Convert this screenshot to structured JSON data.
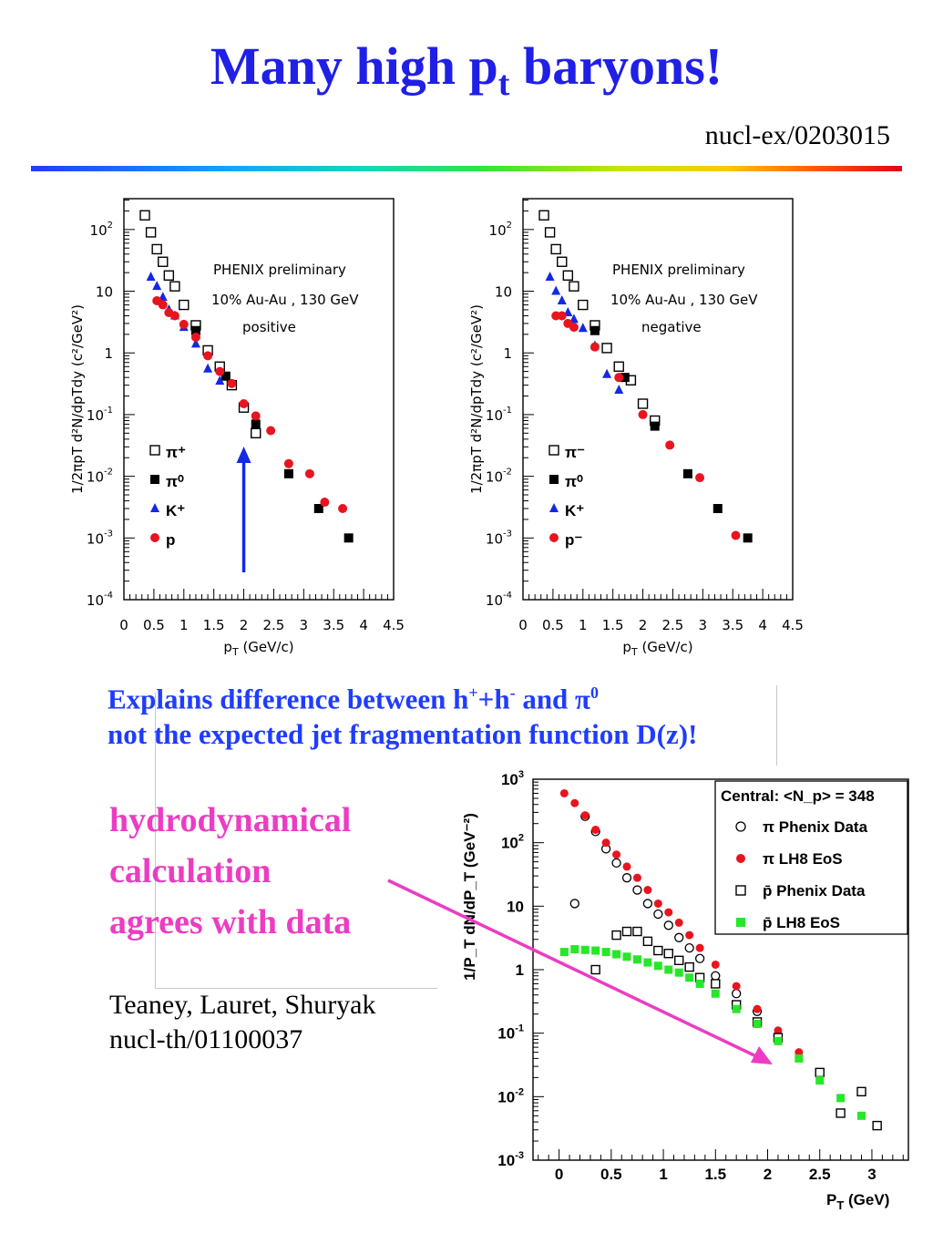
{
  "slide": {
    "title_main": "Many high p",
    "title_sub": "t",
    "title_tail": " baryons!",
    "reference": "nucl-ex/0203015",
    "note_line1_a": "Explains difference between h",
    "note_line1_sup1": "+",
    "note_line1_b": "+h",
    "note_line1_sup2": "-",
    "note_line1_c": " and π",
    "note_line1_sup3": "0",
    "note_line2": "not the expected jet fragmentation function D(z)!",
    "hydro_lines": [
      "hydrodynamical",
      "calculation",
      "agrees with data"
    ],
    "authors_line1": "Teaney, Lauret, Shuryak",
    "authors_line2": "nucl-th/01100037"
  },
  "colors": {
    "title": "#1f1fe6",
    "blue_text": "#1f3cff",
    "magenta_text": "#ec3cc3",
    "red_marker": "#e8141e",
    "blue_marker": "#1428e6",
    "green_marker": "#28e628",
    "phenix_label": "#e8141e"
  },
  "chart_data": [
    {
      "type": "scatter",
      "name": "positive",
      "annotations": [
        "PHENIX preliminary",
        "10% Au-Au , 130 GeV",
        "positive"
      ],
      "xlabel": "p_T (GeV/c)",
      "ylabel": "1/2πp_T d²N/dp_Tdy (c²/GeV²)",
      "xlim": [
        0,
        4.5
      ],
      "ylim_log10": [
        -4,
        2.5
      ],
      "log_y": true,
      "x_ticks": [
        "0",
        "0.5",
        "1",
        "1.5",
        "2",
        "2.5",
        "3",
        "3.5",
        "4",
        "4.5"
      ],
      "y_ticks": [
        "10^-4",
        "10^-3",
        "10^-2",
        "10^-1",
        "1",
        "10",
        "10^2"
      ],
      "legend": [
        "π⁺",
        "π⁰",
        "K⁺",
        "p"
      ],
      "legend_position": "bottom-left",
      "series": [
        {
          "name": "π⁺",
          "marker": "open-square",
          "points": [
            [
              0.25,
              320
            ],
            [
              0.35,
              170
            ],
            [
              0.45,
              90
            ],
            [
              0.55,
              48
            ],
            [
              0.65,
              30
            ],
            [
              0.75,
              18
            ],
            [
              0.85,
              12
            ],
            [
              1.0,
              6
            ],
            [
              1.2,
              2.8
            ],
            [
              1.4,
              1.1
            ],
            [
              1.6,
              0.6
            ],
            [
              1.8,
              0.3
            ],
            [
              2.0,
              0.13
            ],
            [
              2.2,
              0.05
            ]
          ]
        },
        {
          "name": "π⁰",
          "marker": "filled-square",
          "points": [
            [
              1.2,
              2.3
            ],
            [
              1.7,
              0.42
            ],
            [
              2.2,
              0.07
            ],
            [
              2.75,
              0.011
            ],
            [
              3.25,
              0.003
            ],
            [
              3.75,
              0.001
            ]
          ]
        },
        {
          "name": "K⁺",
          "marker": "filled-triangle",
          "points": [
            [
              0.45,
              17
            ],
            [
              0.55,
              12
            ],
            [
              0.65,
              8
            ],
            [
              0.75,
              5
            ],
            [
              0.85,
              4
            ],
            [
              1.0,
              2.6
            ],
            [
              1.2,
              1.4
            ],
            [
              1.4,
              0.55
            ],
            [
              1.6,
              0.35
            ]
          ]
        },
        {
          "name": "p",
          "marker": "filled-circle",
          "points": [
            [
              0.55,
              7
            ],
            [
              0.65,
              6
            ],
            [
              0.75,
              4.5
            ],
            [
              0.85,
              4
            ],
            [
              1.0,
              2.9
            ],
            [
              1.2,
              1.8
            ],
            [
              1.4,
              0.9
            ],
            [
              1.6,
              0.5
            ],
            [
              1.8,
              0.32
            ],
            [
              2.0,
              0.15
            ],
            [
              2.2,
              0.095
            ],
            [
              2.45,
              0.055
            ],
            [
              2.75,
              0.016
            ],
            [
              3.1,
              0.011
            ],
            [
              3.35,
              0.0038
            ],
            [
              3.65,
              0.003
            ]
          ]
        }
      ],
      "arrow_at_x": 2.0
    },
    {
      "type": "scatter",
      "name": "negative",
      "annotations": [
        "PHENIX preliminary",
        "10% Au-Au , 130 GeV",
        "negative"
      ],
      "xlabel": "p_T (GeV/c)",
      "ylabel": "1/2πp_T d²N/dp_Tdy (c²/GeV²)",
      "xlim": [
        0,
        4.5
      ],
      "ylim_log10": [
        -4,
        2.5
      ],
      "log_y": true,
      "x_ticks": [
        "0",
        "0.5",
        "1",
        "1.5",
        "2",
        "2.5",
        "3",
        "3.5",
        "4",
        "4.5"
      ],
      "y_ticks": [
        "10^-4",
        "10^-3",
        "10^-2",
        "10^-1",
        "1",
        "10",
        "10^2"
      ],
      "legend": [
        "π⁻",
        "π⁰",
        "K⁺",
        "p⁻"
      ],
      "legend_position": "bottom-left",
      "series": [
        {
          "name": "π⁻",
          "marker": "open-square",
          "points": [
            [
              0.25,
              320
            ],
            [
              0.35,
              170
            ],
            [
              0.45,
              90
            ],
            [
              0.55,
              48
            ],
            [
              0.65,
              30
            ],
            [
              0.75,
              18
            ],
            [
              0.85,
              12
            ],
            [
              1.0,
              6
            ],
            [
              1.2,
              2.8
            ],
            [
              1.4,
              1.2
            ],
            [
              1.6,
              0.6
            ],
            [
              1.8,
              0.36
            ],
            [
              2.0,
              0.15
            ],
            [
              2.2,
              0.08
            ]
          ]
        },
        {
          "name": "π⁰",
          "marker": "filled-square",
          "points": [
            [
              1.2,
              2.3
            ],
            [
              1.7,
              0.4
            ],
            [
              2.2,
              0.065
            ],
            [
              2.75,
              0.011
            ],
            [
              3.25,
              0.003
            ],
            [
              3.75,
              0.001
            ]
          ]
        },
        {
          "name": "K⁺",
          "marker": "filled-triangle",
          "points": [
            [
              0.45,
              17
            ],
            [
              0.55,
              10
            ],
            [
              0.65,
              7
            ],
            [
              0.75,
              4.5
            ],
            [
              0.85,
              3.5
            ],
            [
              1.0,
              2.5
            ],
            [
              1.2,
              1.3
            ],
            [
              1.4,
              0.45
            ],
            [
              1.6,
              0.25
            ]
          ]
        },
        {
          "name": "p⁻",
          "marker": "filled-circle",
          "points": [
            [
              0.55,
              4
            ],
            [
              0.65,
              4
            ],
            [
              0.75,
              3
            ],
            [
              0.85,
              2.6
            ],
            [
              1.2,
              1.25
            ],
            [
              1.6,
              0.4
            ],
            [
              2.0,
              0.1
            ],
            [
              2.45,
              0.032
            ],
            [
              2.95,
              0.0095
            ],
            [
              3.55,
              0.0011
            ]
          ]
        }
      ]
    },
    {
      "type": "scatter",
      "name": "hydro",
      "xlabel": "P_T (GeV)",
      "ylabel": "1/P_T dN/dP_T (GeV⁻²)",
      "xlim": [
        -0.25,
        3.35
      ],
      "ylim_log10": [
        -3,
        3
      ],
      "log_y": true,
      "x_ticks": [
        "0",
        "0.5",
        "1",
        "1.5",
        "2",
        "2.5",
        "3"
      ],
      "y_ticks": [
        "10^-3",
        "10^-2",
        "10^-1",
        "1",
        "10",
        "10^2",
        "10^3"
      ],
      "legend_title": "Central: <N_p> = 348",
      "legend": [
        "π  Phenix Data",
        "π  LH8 EoS",
        "p̄  Phenix Data",
        "p̄  LH8 EoS"
      ],
      "legend_position": "top-right",
      "series": [
        {
          "name": "π Phenix Data",
          "marker": "open-circle",
          "points": [
            [
              0.15,
              11
            ],
            [
              0.25,
              260
            ],
            [
              0.35,
              150
            ],
            [
              0.45,
              80
            ],
            [
              0.55,
              48
            ],
            [
              0.65,
              28
            ],
            [
              0.75,
              18
            ],
            [
              0.85,
              11
            ],
            [
              0.95,
              7.5
            ],
            [
              1.05,
              5
            ],
            [
              1.15,
              3.2
            ],
            [
              1.25,
              2.2
            ],
            [
              1.35,
              1.5
            ],
            [
              1.5,
              0.8
            ],
            [
              1.7,
              0.42
            ],
            [
              1.9,
              0.22
            ],
            [
              2.1,
              0.09
            ]
          ]
        },
        {
          "name": "π LH8 EoS",
          "marker": "filled-circle",
          "points": [
            [
              0.05,
              600
            ],
            [
              0.15,
              420
            ],
            [
              0.25,
              270
            ],
            [
              0.35,
              160
            ],
            [
              0.45,
              100
            ],
            [
              0.55,
              65
            ],
            [
              0.65,
              42
            ],
            [
              0.75,
              28
            ],
            [
              0.85,
              18
            ],
            [
              0.95,
              11
            ],
            [
              1.05,
              8
            ],
            [
              1.15,
              5.5
            ],
            [
              1.25,
              3.5
            ],
            [
              1.35,
              2.2
            ],
            [
              1.5,
              1.2
            ],
            [
              1.7,
              0.55
            ],
            [
              1.9,
              0.24
            ],
            [
              2.1,
              0.11
            ],
            [
              2.3,
              0.05
            ]
          ]
        },
        {
          "name": "p̄ Phenix Data",
          "marker": "open-square",
          "points": [
            [
              0.35,
              1
            ],
            [
              0.55,
              3.5
            ],
            [
              0.65,
              4
            ],
            [
              0.75,
              4
            ],
            [
              0.85,
              2.8
            ],
            [
              0.95,
              2
            ],
            [
              1.05,
              1.8
            ],
            [
              1.15,
              1.4
            ],
            [
              1.25,
              1.1
            ],
            [
              1.35,
              0.75
            ],
            [
              1.5,
              0.6
            ],
            [
              1.7,
              0.28
            ],
            [
              1.9,
              0.15
            ],
            [
              2.1,
              0.085
            ],
            [
              2.5,
              0.024
            ],
            [
              2.7,
              0.0055
            ],
            [
              2.9,
              0.012
            ],
            [
              3.05,
              0.0035
            ]
          ]
        },
        {
          "name": "p̄ LH8 EoS",
          "marker": "filled-square",
          "points": [
            [
              0.05,
              1.9
            ],
            [
              0.15,
              2.1
            ],
            [
              0.25,
              2.05
            ],
            [
              0.35,
              2
            ],
            [
              0.45,
              1.9
            ],
            [
              0.55,
              1.75
            ],
            [
              0.65,
              1.6
            ],
            [
              0.75,
              1.45
            ],
            [
              0.85,
              1.3
            ],
            [
              0.95,
              1.15
            ],
            [
              1.05,
              1
            ],
            [
              1.15,
              0.9
            ],
            [
              1.25,
              0.75
            ],
            [
              1.35,
              0.6
            ],
            [
              1.5,
              0.42
            ],
            [
              1.7,
              0.24
            ],
            [
              1.9,
              0.14
            ],
            [
              2.1,
              0.075
            ],
            [
              2.3,
              0.04
            ],
            [
              2.5,
              0.018
            ],
            [
              2.7,
              0.0095
            ],
            [
              2.9,
              0.005
            ]
          ]
        }
      ]
    }
  ]
}
